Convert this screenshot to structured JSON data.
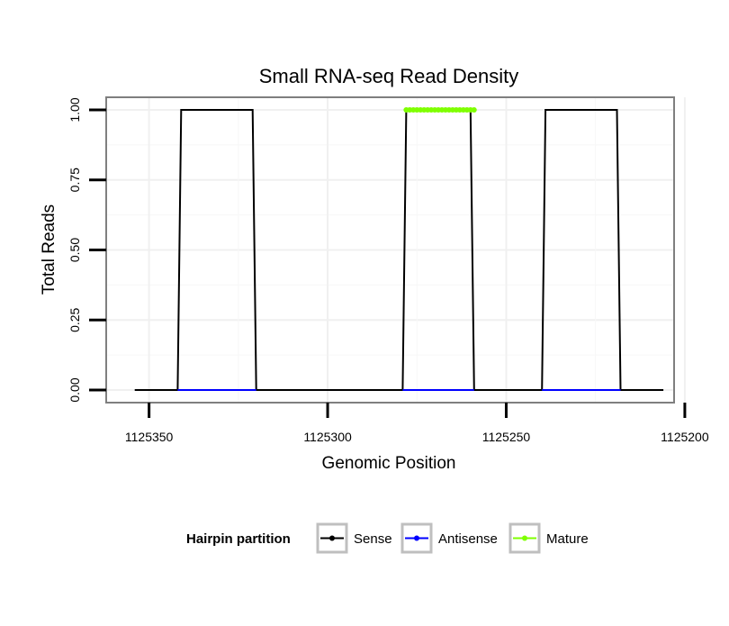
{
  "chart_data": {
    "type": "line",
    "title": "Small RNA-seq Read Density",
    "xlabel": "Genomic Position",
    "ylabel": "Total Reads",
    "x_reversed": true,
    "xlim": [
      1125362,
      1125203
    ],
    "ylim": [
      -0.045,
      1.045
    ],
    "x_ticks": [
      1125350,
      1125300,
      1125250,
      1125200
    ],
    "x_tick_labels": [
      "1125350",
      "1125300",
      "1125250",
      "1125200"
    ],
    "y_ticks": [
      0.0,
      0.25,
      0.5,
      0.75,
      1.0
    ],
    "y_tick_labels": [
      "0.00",
      "0.25",
      "0.50",
      "0.75",
      "1.00"
    ],
    "grid": true,
    "legend_position": "bottom",
    "legend_title": "Hairpin partition",
    "series": [
      {
        "name": "Sense",
        "color": "#000000",
        "style": "line",
        "x": [
          1125354,
          1125342,
          1125341,
          1125321,
          1125320,
          1125279,
          1125278,
          1125260,
          1125259,
          1125240,
          1125239,
          1125219,
          1125218,
          1125206
        ],
        "y": [
          0,
          0,
          1,
          1,
          0,
          0,
          1,
          1,
          0,
          0,
          1,
          1,
          0,
          0
        ]
      },
      {
        "name": "Antisense",
        "color": "#0000ff",
        "style": "line",
        "segments": [
          {
            "x": [
              1125342,
              1125320
            ],
            "y": [
              0,
              0
            ]
          },
          {
            "x": [
              1125279,
              1125259
            ],
            "y": [
              0,
              0
            ]
          },
          {
            "x": [
              1125240,
              1125218
            ],
            "y": [
              0,
              0
            ]
          }
        ]
      },
      {
        "name": "Mature",
        "color": "#7fff00",
        "style": "points",
        "x": [
          1125278,
          1125277,
          1125276,
          1125275,
          1125274,
          1125273,
          1125272,
          1125271,
          1125270,
          1125269,
          1125268,
          1125267,
          1125266,
          1125265,
          1125264,
          1125263,
          1125262,
          1125261,
          1125260,
          1125259
        ],
        "y": [
          1,
          1,
          1,
          1,
          1,
          1,
          1,
          1,
          1,
          1,
          1,
          1,
          1,
          1,
          1,
          1,
          1,
          1,
          1,
          1
        ]
      }
    ]
  }
}
